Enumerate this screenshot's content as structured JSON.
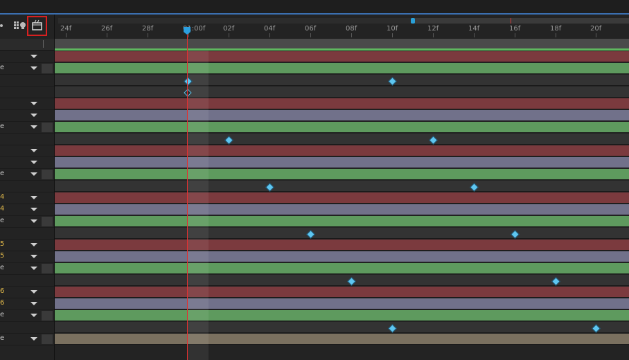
{
  "toolbar": {
    "icons": [
      "graph-editor-icon",
      "motion-blur-icon",
      "frame-blending-icon"
    ]
  },
  "ruler": {
    "labels": [
      "24f",
      "26f",
      "28f",
      "01:00f",
      "02f",
      "04f",
      "06f",
      "08f",
      "10f",
      "12f",
      "14f",
      "16f",
      "18f",
      "20f"
    ]
  },
  "left_labels": [
    "",
    "e",
    "",
    "",
    "",
    "",
    "e",
    "",
    "",
    "",
    "e",
    "",
    "4",
    "4",
    "e",
    "",
    "5",
    "5",
    "e",
    "",
    "6",
    "6",
    "e",
    "",
    "e"
  ],
  "tracks": [
    {
      "color": "red"
    },
    {
      "color": "green"
    },
    {
      "color": "dark"
    },
    {
      "color": "dark"
    },
    {
      "color": "red"
    },
    {
      "color": "lav"
    },
    {
      "color": "green"
    },
    {
      "color": "dark"
    },
    {
      "color": "red"
    },
    {
      "color": "lav"
    },
    {
      "color": "green"
    },
    {
      "color": "dark"
    },
    {
      "color": "red"
    },
    {
      "color": "lav"
    },
    {
      "color": "green"
    },
    {
      "color": "dark"
    },
    {
      "color": "red"
    },
    {
      "color": "lav"
    },
    {
      "color": "green"
    },
    {
      "color": "dark"
    },
    {
      "color": "red"
    },
    {
      "color": "lav"
    },
    {
      "color": "green"
    },
    {
      "color": "dark"
    },
    {
      "color": "tan"
    }
  ],
  "colors": {
    "red_track": "#7b3a3e",
    "green_track": "#5e9a5e",
    "lavender_track": "#71718a",
    "tan_track": "#7a705f",
    "playhead": "#e03030",
    "keyframe": "#5ec6f0"
  }
}
